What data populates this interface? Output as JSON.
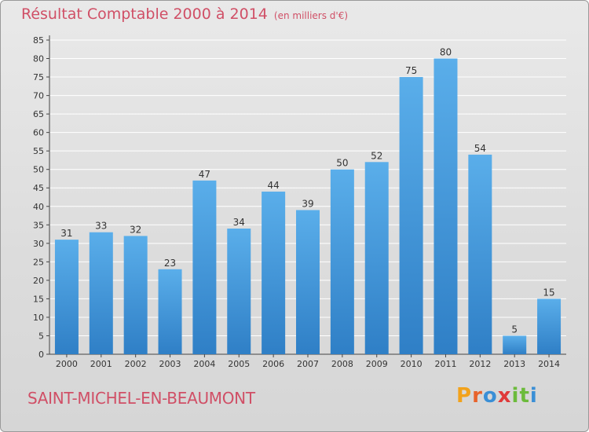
{
  "header": {
    "title": "Résultat Comptable 2000 à 2014",
    "unit": "(en milliers d'€)"
  },
  "footer": {
    "commune": "SAINT-MICHEL-EN-BEAUMONT",
    "logo_letters": [
      "P",
      "r",
      "o",
      "x",
      "i",
      "t",
      "i"
    ],
    "logo_colors": [
      "#f2a21b",
      "#e8632b",
      "#3a8fd6",
      "#e03a3a",
      "#6cbb3c",
      "#6cbb3c",
      "#3a8fd6"
    ]
  },
  "colors": {
    "bar_light": "#5aaeea",
    "bar_dark": "#2f7fc6",
    "title": "#d04f66"
  },
  "chart_data": {
    "type": "bar",
    "title": "Résultat Comptable 2000 à 2014",
    "xlabel": "",
    "ylabel": "",
    "categories": [
      "2000",
      "2001",
      "2002",
      "2003",
      "2004",
      "2005",
      "2006",
      "2007",
      "2008",
      "2009",
      "2010",
      "2011",
      "2012",
      "2013",
      "2014"
    ],
    "values": [
      31,
      33,
      32,
      23,
      47,
      34,
      44,
      39,
      50,
      52,
      75,
      80,
      54,
      5,
      15
    ],
    "ylim": [
      0,
      85
    ],
    "yticks": [
      0,
      5,
      10,
      15,
      20,
      25,
      30,
      35,
      40,
      45,
      50,
      55,
      60,
      65,
      70,
      75,
      80,
      85
    ],
    "grid": true
  }
}
